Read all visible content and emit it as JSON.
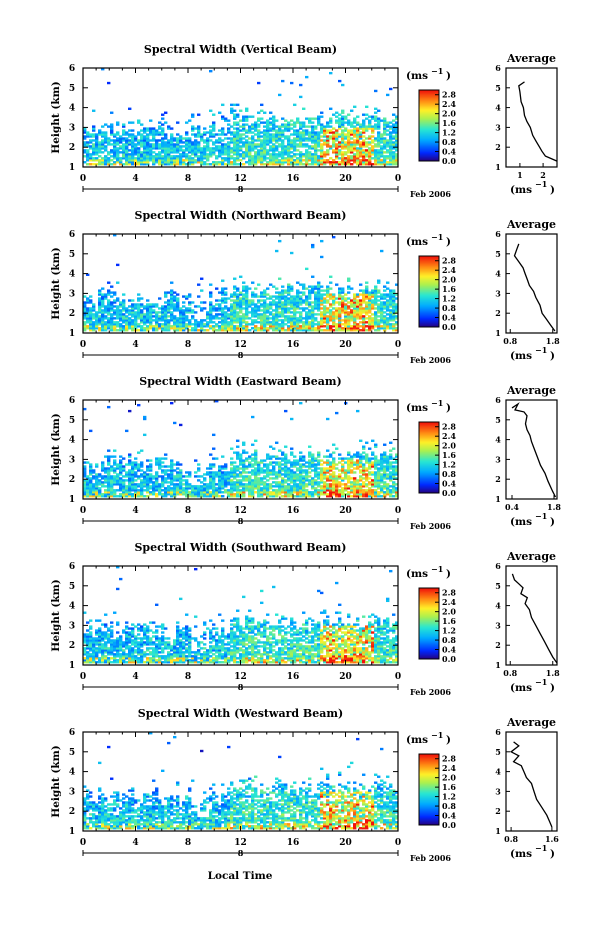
{
  "figure": {
    "height_axis_label": "Height (km)",
    "time_axis_label": "Local Time",
    "unit_label": "(ms",
    "unit_exp": "−1",
    "date_tag": "Feb 2006",
    "day_label": "8",
    "average_title": "Average"
  },
  "chart_data": [
    {
      "type": "heatmap",
      "title": "Spectral Width (Vertical Beam)",
      "ylabel": "Height (km)",
      "xticks": [
        "0",
        "4",
        "8",
        "12",
        "16",
        "20",
        "0"
      ],
      "yticks": [
        "1",
        "2",
        "3",
        "4",
        "5",
        "6"
      ],
      "xlim": [
        0,
        24
      ],
      "ylim": [
        1,
        6
      ],
      "colorbar_ticks": [
        "2.8",
        "2.4",
        "2.0",
        "1.6",
        "1.2",
        "0.8",
        "0.4",
        "0.0"
      ],
      "colorbar_range": [
        0,
        3.0
      ],
      "average_profile": {
        "title": "Average",
        "xticks": [
          "1",
          "2"
        ],
        "xlim": [
          0.4,
          2.6
        ],
        "ylim": [
          1,
          6
        ],
        "points": [
          [
            1.2,
            5.3
          ],
          [
            0.95,
            5.1
          ],
          [
            1.0,
            4.8
          ],
          [
            1.05,
            4.3
          ],
          [
            1.15,
            4.0
          ],
          [
            1.2,
            3.6
          ],
          [
            1.3,
            3.3
          ],
          [
            1.45,
            3.0
          ],
          [
            1.55,
            2.6
          ],
          [
            1.7,
            2.3
          ],
          [
            1.85,
            2.0
          ],
          [
            1.95,
            1.8
          ],
          [
            2.1,
            1.55
          ],
          [
            2.4,
            1.4
          ],
          [
            2.6,
            1.3
          ]
        ]
      }
    },
    {
      "type": "heatmap",
      "title": "Spectral Width (Northward Beam)",
      "ylabel": "Height (km)",
      "xticks": [
        "0",
        "4",
        "8",
        "12",
        "16",
        "20",
        "0"
      ],
      "yticks": [
        "1",
        "2",
        "3",
        "4",
        "5",
        "6"
      ],
      "xlim": [
        0,
        24
      ],
      "ylim": [
        1,
        6
      ],
      "colorbar_ticks": [
        "2.8",
        "2.4",
        "2.0",
        "1.6",
        "1.2",
        "0.8",
        "0.4",
        "0.0"
      ],
      "colorbar_range": [
        0,
        3.0
      ],
      "average_profile": {
        "title": "Average",
        "xticks": [
          "0.8",
          "1.8"
        ],
        "xlim": [
          0.7,
          1.9
        ],
        "ylim": [
          1,
          6
        ],
        "points": [
          [
            1.0,
            5.5
          ],
          [
            0.95,
            5.2
          ],
          [
            0.9,
            4.9
          ],
          [
            1.0,
            4.6
          ],
          [
            1.1,
            4.3
          ],
          [
            1.15,
            4.0
          ],
          [
            1.2,
            3.7
          ],
          [
            1.25,
            3.4
          ],
          [
            1.35,
            3.1
          ],
          [
            1.4,
            2.8
          ],
          [
            1.5,
            2.4
          ],
          [
            1.55,
            2.0
          ],
          [
            1.65,
            1.7
          ],
          [
            1.75,
            1.4
          ],
          [
            1.85,
            1.1
          ]
        ]
      }
    },
    {
      "type": "heatmap",
      "title": "Spectral Width (Eastward Beam)",
      "ylabel": "Height (km)",
      "xticks": [
        "0",
        "4",
        "8",
        "12",
        "16",
        "20",
        "0"
      ],
      "yticks": [
        "1",
        "2",
        "3",
        "4",
        "5",
        "6"
      ],
      "xlim": [
        0,
        24
      ],
      "ylim": [
        1,
        6
      ],
      "colorbar_ticks": [
        "2.8",
        "2.4",
        "2.0",
        "1.6",
        "1.2",
        "0.8",
        "0.4",
        "0.0"
      ],
      "colorbar_range": [
        0,
        3.0
      ],
      "average_profile": {
        "title": "Average",
        "xticks": [
          "0.4",
          "1.8"
        ],
        "xlim": [
          0.2,
          1.9
        ],
        "ylim": [
          1,
          6
        ],
        "points": [
          [
            0.4,
            5.6
          ],
          [
            0.6,
            5.8
          ],
          [
            0.5,
            5.5
          ],
          [
            0.8,
            5.4
          ],
          [
            0.9,
            5.2
          ],
          [
            0.85,
            4.8
          ],
          [
            0.9,
            4.5
          ],
          [
            1.0,
            4.2
          ],
          [
            1.05,
            3.9
          ],
          [
            1.15,
            3.5
          ],
          [
            1.25,
            3.1
          ],
          [
            1.35,
            2.7
          ],
          [
            1.5,
            2.3
          ],
          [
            1.6,
            1.9
          ],
          [
            1.75,
            1.4
          ],
          [
            1.85,
            1.1
          ]
        ]
      }
    },
    {
      "type": "heatmap",
      "title": "Spectral Width (Southward Beam)",
      "ylabel": "Height (km)",
      "xticks": [
        "0",
        "4",
        "8",
        "12",
        "16",
        "20",
        "0"
      ],
      "yticks": [
        "1",
        "2",
        "3",
        "4",
        "5",
        "6"
      ],
      "xlim": [
        0,
        24
      ],
      "ylim": [
        1,
        6
      ],
      "colorbar_ticks": [
        "2.8",
        "2.4",
        "2.0",
        "1.6",
        "1.2",
        "0.8",
        "0.4",
        "0.0"
      ],
      "colorbar_range": [
        0,
        3.0
      ],
      "average_profile": {
        "title": "Average",
        "xticks": [
          "0.8",
          "1.8"
        ],
        "xlim": [
          0.7,
          1.9
        ],
        "ylim": [
          1,
          6
        ],
        "points": [
          [
            0.85,
            5.6
          ],
          [
            0.9,
            5.3
          ],
          [
            1.0,
            5.1
          ],
          [
            1.1,
            4.9
          ],
          [
            1.05,
            4.6
          ],
          [
            1.2,
            4.4
          ],
          [
            1.15,
            4.1
          ],
          [
            1.25,
            3.8
          ],
          [
            1.3,
            3.4
          ],
          [
            1.4,
            3.0
          ],
          [
            1.5,
            2.6
          ],
          [
            1.6,
            2.2
          ],
          [
            1.7,
            1.8
          ],
          [
            1.8,
            1.4
          ],
          [
            1.9,
            1.1
          ]
        ]
      }
    },
    {
      "type": "heatmap",
      "title": "Spectral Width (Westward Beam)",
      "ylabel": "Height (km)",
      "xticks": [
        "0",
        "4",
        "8",
        "12",
        "16",
        "20",
        "0"
      ],
      "yticks": [
        "1",
        "2",
        "3",
        "4",
        "5",
        "6"
      ],
      "xlim": [
        0,
        24
      ],
      "ylim": [
        1,
        6
      ],
      "colorbar_ticks": [
        "2.8",
        "2.4",
        "2.0",
        "1.6",
        "1.2",
        "0.8",
        "0.4",
        "0.0"
      ],
      "colorbar_range": [
        0,
        3.0
      ],
      "average_profile": {
        "title": "Average",
        "xticks": [
          "0.8",
          "1.6"
        ],
        "xlim": [
          0.7,
          1.7
        ],
        "ylim": [
          1,
          6
        ],
        "points": [
          [
            0.85,
            5.5
          ],
          [
            0.95,
            5.3
          ],
          [
            0.8,
            5.0
          ],
          [
            0.95,
            4.8
          ],
          [
            0.85,
            4.5
          ],
          [
            1.0,
            4.3
          ],
          [
            1.05,
            4.0
          ],
          [
            1.1,
            3.7
          ],
          [
            1.2,
            3.4
          ],
          [
            1.25,
            3.0
          ],
          [
            1.3,
            2.6
          ],
          [
            1.4,
            2.2
          ],
          [
            1.5,
            1.8
          ],
          [
            1.55,
            1.5
          ],
          [
            1.6,
            1.2
          ]
        ]
      }
    }
  ]
}
